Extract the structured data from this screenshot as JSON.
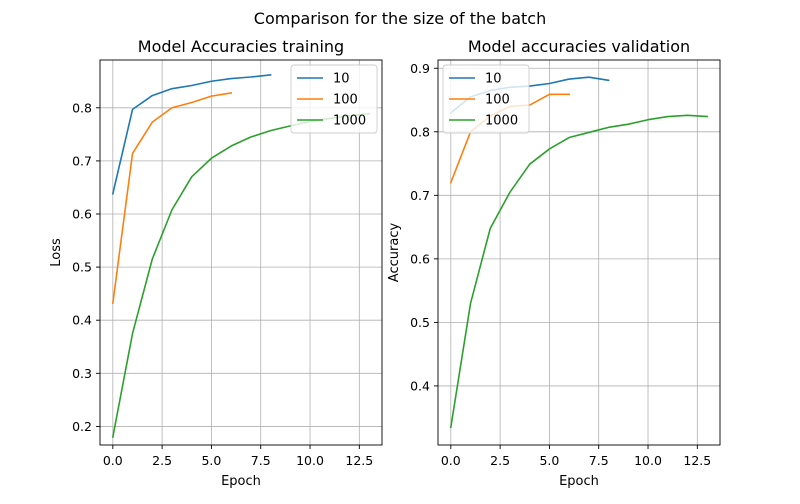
{
  "figure": {
    "suptitle": "Comparison for the size of the batch"
  },
  "chart_data": [
    {
      "type": "line",
      "title": "Model Accuracies training",
      "xlabel": "Epoch",
      "ylabel": "Loss",
      "xlim": [
        -0.65,
        13.65
      ],
      "ylim": [
        0.165,
        0.89
      ],
      "xticks": [
        0.0,
        2.5,
        5.0,
        7.5,
        10.0,
        12.5
      ],
      "xtick_labels": [
        "0.0",
        "2.5",
        "5.0",
        "7.5",
        "10.0",
        "12.5"
      ],
      "yticks": [
        0.2,
        0.3,
        0.4,
        0.5,
        0.6,
        0.7,
        0.8
      ],
      "ytick_labels": [
        "0.2",
        "0.3",
        "0.4",
        "0.5",
        "0.6",
        "0.7",
        "0.8"
      ],
      "grid": true,
      "legend_position": "top-right",
      "series": [
        {
          "name": "10",
          "color": "#1f77b4",
          "x": [
            0,
            1,
            2,
            3,
            4,
            5,
            6,
            7,
            8
          ],
          "y": [
            0.638,
            0.797,
            0.823,
            0.836,
            0.842,
            0.85,
            0.855,
            0.858,
            0.862
          ]
        },
        {
          "name": "100",
          "color": "#ff7f0e",
          "x": [
            0,
            1,
            2,
            3,
            4,
            5,
            6
          ],
          "y": [
            0.432,
            0.714,
            0.773,
            0.8,
            0.81,
            0.822,
            0.828
          ]
        },
        {
          "name": "1000",
          "color": "#2ca02c",
          "x": [
            0,
            1,
            2,
            3,
            4,
            5,
            6,
            7,
            8,
            9,
            10,
            11,
            12,
            13
          ],
          "y": [
            0.18,
            0.375,
            0.515,
            0.608,
            0.67,
            0.705,
            0.728,
            0.745,
            0.757,
            0.766,
            0.774,
            0.78,
            0.785,
            0.789
          ]
        }
      ]
    },
    {
      "type": "line",
      "title": "Model accuracies validation",
      "xlabel": "Epoch",
      "ylabel": "Accuracy",
      "xlim": [
        -0.65,
        13.65
      ],
      "ylim": [
        0.307,
        0.913
      ],
      "xticks": [
        0.0,
        2.5,
        5.0,
        7.5,
        10.0,
        12.5
      ],
      "xtick_labels": [
        "0.0",
        "2.5",
        "5.0",
        "7.5",
        "10.0",
        "12.5"
      ],
      "yticks": [
        0.4,
        0.5,
        0.6,
        0.7,
        0.8,
        0.9
      ],
      "ytick_labels": [
        "0.4",
        "0.5",
        "0.6",
        "0.7",
        "0.8",
        "0.9"
      ],
      "grid": true,
      "legend_position": "top-left",
      "series": [
        {
          "name": "10",
          "color": "#1f77b4",
          "x": [
            0,
            1,
            2,
            3,
            4,
            5,
            6,
            7,
            8
          ],
          "y": [
            0.83,
            0.855,
            0.865,
            0.87,
            0.872,
            0.876,
            0.883,
            0.886,
            0.881
          ]
        },
        {
          "name": "100",
          "color": "#ff7f0e",
          "x": [
            0,
            1,
            2,
            3,
            4,
            5,
            6
          ],
          "y": [
            0.72,
            0.8,
            0.825,
            0.84,
            0.842,
            0.859,
            0.859
          ]
        },
        {
          "name": "1000",
          "color": "#2ca02c",
          "x": [
            0,
            1,
            2,
            3,
            4,
            5,
            6,
            7,
            8,
            9,
            10,
            11,
            12,
            13
          ],
          "y": [
            0.335,
            0.53,
            0.648,
            0.705,
            0.749,
            0.773,
            0.791,
            0.799,
            0.807,
            0.812,
            0.819,
            0.824,
            0.826,
            0.824
          ]
        }
      ]
    }
  ]
}
